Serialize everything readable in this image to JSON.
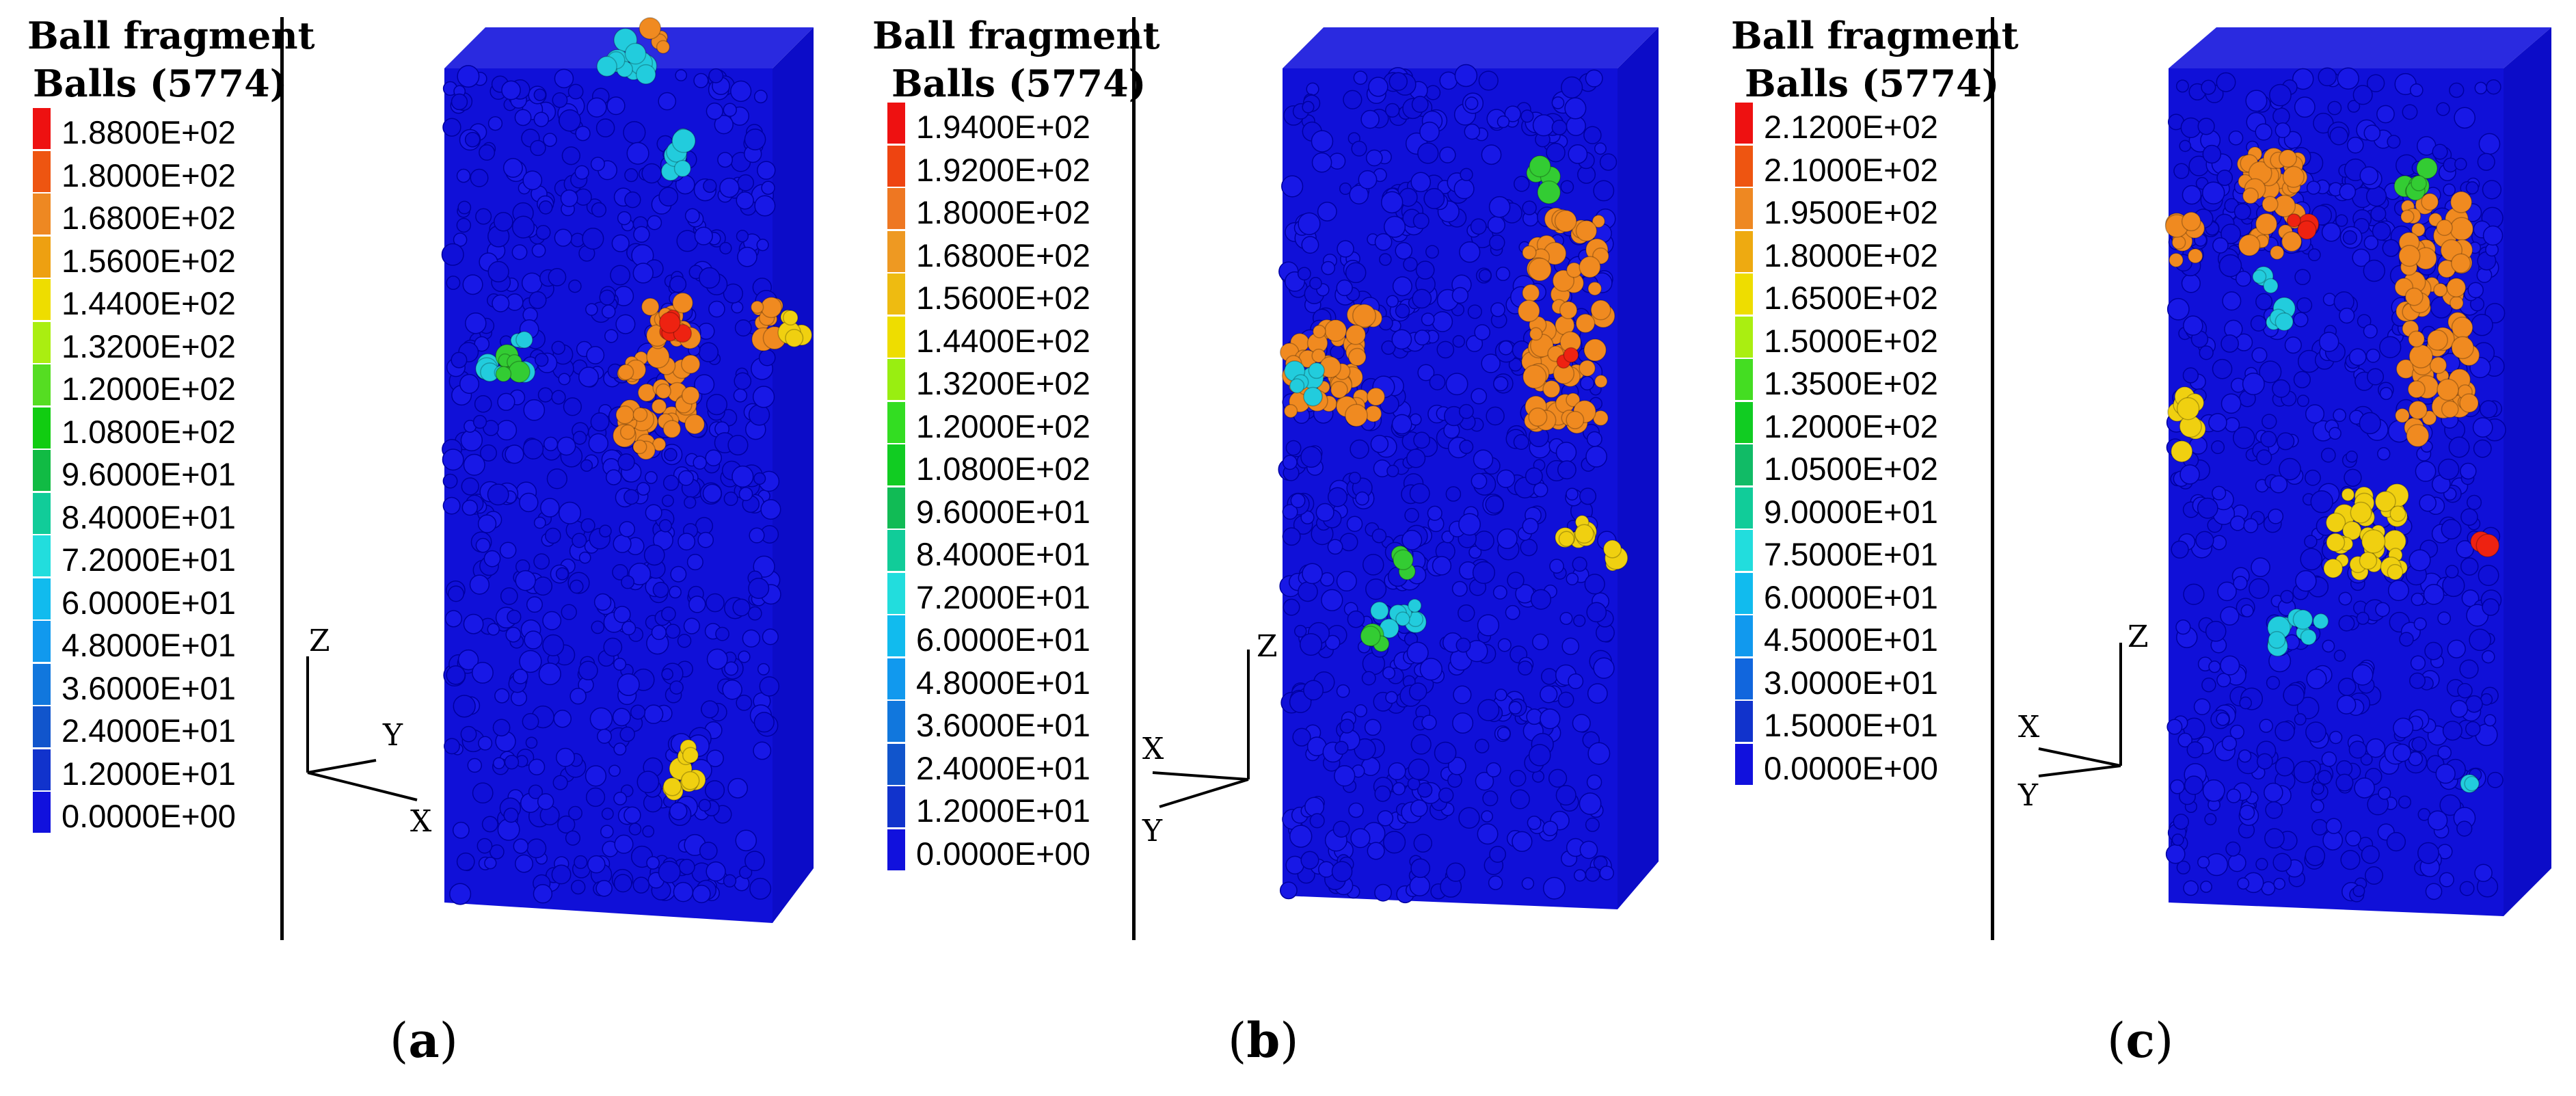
{
  "panels": [
    {
      "caption_letter": "a",
      "legend": {
        "title_line1": "Ball fragment",
        "title_line2": "Balls (5774)",
        "ticks": [
          "1.8800E+02",
          "1.8000E+02",
          "1.6800E+02",
          "1.5600E+02",
          "1.4400E+02",
          "1.3200E+02",
          "1.2000E+02",
          "1.0800E+02",
          "9.6000E+01",
          "8.4000E+01",
          "7.2000E+01",
          "6.0000E+01",
          "4.8000E+01",
          "3.6000E+01",
          "2.4000E+01",
          "1.2000E+01",
          "0.0000E+00"
        ]
      },
      "axes": {
        "z": "Z",
        "y": "Y",
        "x": "X"
      }
    },
    {
      "caption_letter": "b",
      "legend": {
        "title_line1": "Ball fragment",
        "title_line2": "Balls (5774)",
        "ticks": [
          "1.9400E+02",
          "1.9200E+02",
          "1.8000E+02",
          "1.6800E+02",
          "1.5600E+02",
          "1.4400E+02",
          "1.3200E+02",
          "1.2000E+02",
          "1.0800E+02",
          "9.6000E+01",
          "8.4000E+01",
          "7.2000E+01",
          "6.0000E+01",
          "4.8000E+01",
          "3.6000E+01",
          "2.4000E+01",
          "1.2000E+01",
          "0.0000E+00"
        ]
      },
      "axes": {
        "z": "Z",
        "x": "X",
        "y": "Y"
      }
    },
    {
      "caption_letter": "c",
      "legend": {
        "title_line1": "Ball fragment",
        "title_line2": "Balls (5774)",
        "ticks": [
          "2.1200E+02",
          "2.1000E+02",
          "1.9500E+02",
          "1.8000E+02",
          "1.6500E+02",
          "1.5000E+02",
          "1.3500E+02",
          "1.2000E+02",
          "1.0500E+02",
          "9.0000E+01",
          "7.5000E+01",
          "6.0000E+01",
          "4.5000E+01",
          "3.0000E+01",
          "1.5000E+01",
          "0.0000E+00"
        ]
      },
      "axes": {
        "z": "Z",
        "x": "X",
        "y": "Y"
      }
    }
  ],
  "colors": {
    "balls_base": "#1010d8",
    "ball_shadow": "#0000a0",
    "ramp_a": [
      "#ee1111",
      "#ee5511",
      "#ee8822",
      "#eea011",
      "#eedd00",
      "#aaee11",
      "#55dd22",
      "#11cc11",
      "#11bb44",
      "#11cc99",
      "#22dddd",
      "#11bbee",
      "#1199ee",
      "#1177dd",
      "#1155cc",
      "#1133cc",
      "#1111dd"
    ],
    "ramp_b": [
      "#ee1111",
      "#ee4411",
      "#ee7722",
      "#ee9922",
      "#eebb11",
      "#eedd00",
      "#99ee11",
      "#33dd22",
      "#11cc22",
      "#11bb55",
      "#11cc99",
      "#22dddd",
      "#11bbee",
      "#1199ee",
      "#1177dd",
      "#1155cc",
      "#1133cc",
      "#1111dd"
    ],
    "ramp_c": [
      "#ee1111",
      "#ee5511",
      "#ee8822",
      "#eeaa11",
      "#eedd00",
      "#aaee11",
      "#44dd22",
      "#11cc22",
      "#11bb66",
      "#11cc99",
      "#22dddd",
      "#11bbee",
      "#1199ee",
      "#1166dd",
      "#1133cc",
      "#1111dd"
    ],
    "fragment_orange": "#f08a20",
    "fragment_yellow": "#f0d010",
    "fragment_cyan": "#22ccdd",
    "fragment_green": "#33cc33",
    "fragment_red": "#ee2211"
  }
}
